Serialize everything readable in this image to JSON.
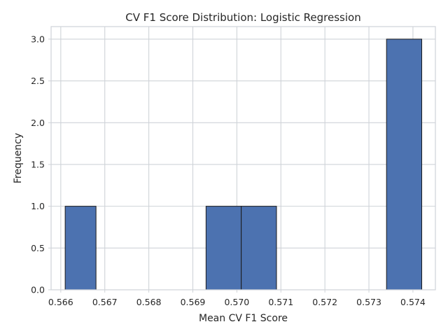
{
  "chart_data": {
    "type": "bar",
    "title": "CV F1 Score Distribution: Logistic Regression",
    "xlabel": "Mean CV F1 Score",
    "ylabel": "Frequency",
    "xlim": [
      0.56578,
      0.57451
    ],
    "ylim": [
      0,
      3.15
    ],
    "xticks": [
      0.566,
      0.567,
      0.568,
      0.569,
      0.57,
      0.571,
      0.572,
      0.573,
      0.574
    ],
    "xtick_labels": [
      "0.566",
      "0.567",
      "0.568",
      "0.569",
      "0.570",
      "0.571",
      "0.572",
      "0.573",
      "0.574"
    ],
    "yticks": [
      0,
      0.5,
      1.0,
      1.5,
      2.0,
      2.5,
      3.0
    ],
    "ytick_labels": [
      "0.0",
      "0.5",
      "1.0",
      "1.5",
      "2.0",
      "2.5",
      "3.0"
    ],
    "grid": true,
    "colors": {
      "bar": "#4c72b0",
      "edge": "#1b1b1b",
      "grid": "#cfd3d8"
    },
    "bins": [
      {
        "x0": 0.5661,
        "x1": 0.5668,
        "count": 1
      },
      {
        "x0": 0.5668,
        "x1": 0.5676,
        "count": 0
      },
      {
        "x0": 0.5676,
        "x1": 0.5685,
        "count": 0
      },
      {
        "x0": 0.5685,
        "x1": 0.5693,
        "count": 0
      },
      {
        "x0": 0.5693,
        "x1": 0.5701,
        "count": 1
      },
      {
        "x0": 0.5701,
        "x1": 0.5709,
        "count": 1
      },
      {
        "x0": 0.5709,
        "x1": 0.5717,
        "count": 0
      },
      {
        "x0": 0.5717,
        "x1": 0.5726,
        "count": 0
      },
      {
        "x0": 0.5726,
        "x1": 0.5734,
        "count": 0
      },
      {
        "x0": 0.5734,
        "x1": 0.5742,
        "count": 3
      }
    ]
  }
}
